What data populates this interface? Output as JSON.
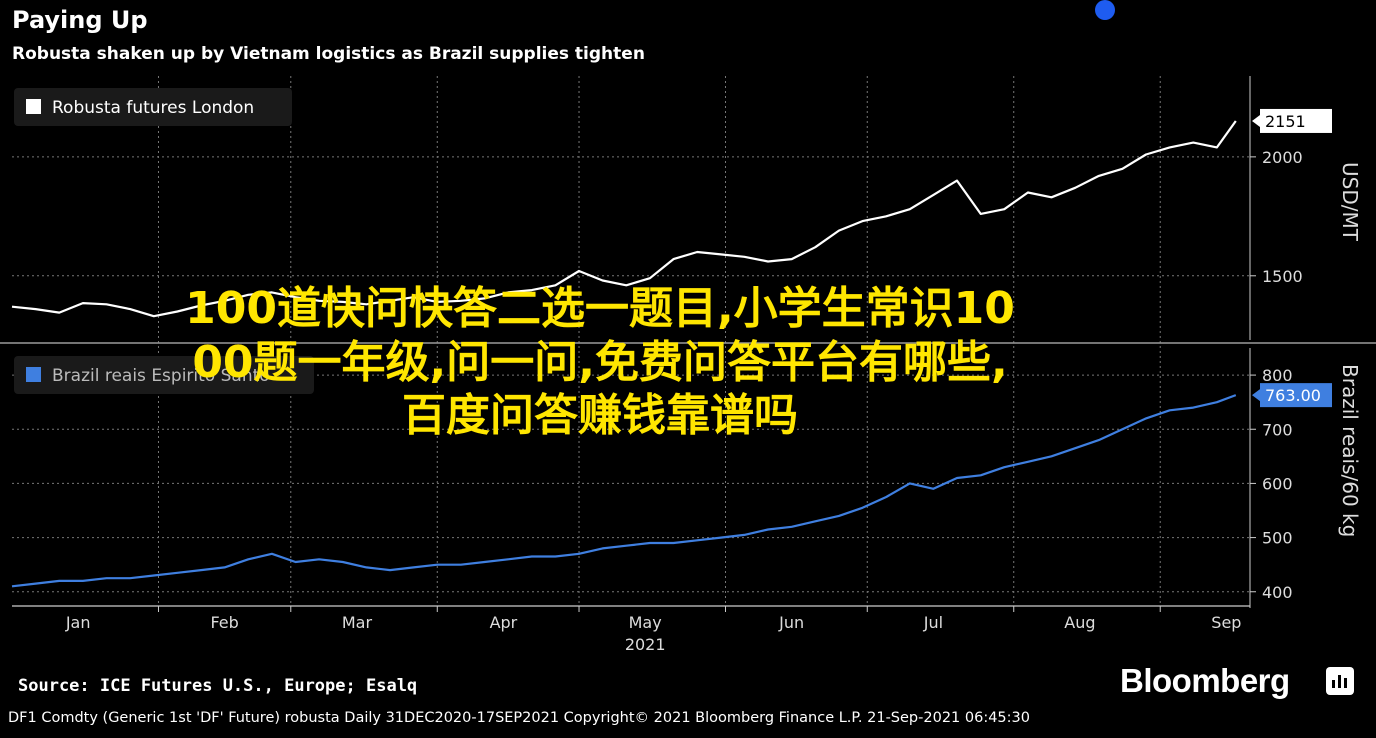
{
  "header": {
    "title": "Paying Up",
    "subtitle": "Robusta shaken up by Vietnam logistics as Brazil supplies tighten"
  },
  "overlay": {
    "lines": [
      "100道快问快答二选一题目,小学生常识10",
      "00题一年级,问一问,免费问答平台有哪些,",
      "百度问答赚钱靠谱吗"
    ]
  },
  "chart_data": [
    {
      "type": "line",
      "series": [
        {
          "name": "Robusta futures London",
          "color": "#ffffff",
          "x": [
            "2021-01-01",
            "2021-01-06",
            "2021-01-11",
            "2021-01-16",
            "2021-01-21",
            "2021-01-26",
            "2021-01-31",
            "2021-02-05",
            "2021-02-10",
            "2021-02-15",
            "2021-02-20",
            "2021-02-25",
            "2021-03-02",
            "2021-03-07",
            "2021-03-12",
            "2021-03-17",
            "2021-03-22",
            "2021-03-27",
            "2021-04-01",
            "2021-04-06",
            "2021-04-11",
            "2021-04-16",
            "2021-04-21",
            "2021-04-26",
            "2021-05-01",
            "2021-05-06",
            "2021-05-11",
            "2021-05-16",
            "2021-05-21",
            "2021-05-26",
            "2021-05-31",
            "2021-06-05",
            "2021-06-10",
            "2021-06-15",
            "2021-06-20",
            "2021-06-25",
            "2021-06-30",
            "2021-07-05",
            "2021-07-10",
            "2021-07-15",
            "2021-07-20",
            "2021-07-25",
            "2021-07-30",
            "2021-08-04",
            "2021-08-09",
            "2021-08-14",
            "2021-08-19",
            "2021-08-24",
            "2021-08-29",
            "2021-09-03",
            "2021-09-08",
            "2021-09-13",
            "2021-09-17"
          ],
          "values": [
            1370,
            1360,
            1345,
            1385,
            1380,
            1360,
            1330,
            1350,
            1375,
            1395,
            1420,
            1430,
            1410,
            1395,
            1390,
            1380,
            1395,
            1410,
            1390,
            1395,
            1405,
            1430,
            1440,
            1460,
            1520,
            1480,
            1460,
            1490,
            1570,
            1600,
            1590,
            1580,
            1560,
            1570,
            1620,
            1690,
            1730,
            1750,
            1780,
            1840,
            1900,
            1760,
            1780,
            1850,
            1830,
            1870,
            1920,
            1950,
            2010,
            2040,
            2060,
            2040,
            2151
          ]
        }
      ],
      "ylabel": "USD/MT",
      "yticks": [
        1500,
        2000
      ],
      "ylim": [
        1230,
        2340
      ],
      "last_value_label": "2151",
      "grid": true,
      "legend": "top-left"
    },
    {
      "type": "line",
      "series": [
        {
          "name": "Brazil reais Espirito Santo",
          "color": "#3f7fe0",
          "x": [
            "2021-01-01",
            "2021-01-06",
            "2021-01-11",
            "2021-01-16",
            "2021-01-21",
            "2021-01-26",
            "2021-01-31",
            "2021-02-05",
            "2021-02-10",
            "2021-02-15",
            "2021-02-20",
            "2021-02-25",
            "2021-03-02",
            "2021-03-07",
            "2021-03-12",
            "2021-03-17",
            "2021-03-22",
            "2021-03-27",
            "2021-04-01",
            "2021-04-06",
            "2021-04-11",
            "2021-04-16",
            "2021-04-21",
            "2021-04-26",
            "2021-05-01",
            "2021-05-06",
            "2021-05-11",
            "2021-05-16",
            "2021-05-21",
            "2021-05-26",
            "2021-05-31",
            "2021-06-05",
            "2021-06-10",
            "2021-06-15",
            "2021-06-20",
            "2021-06-25",
            "2021-06-30",
            "2021-07-05",
            "2021-07-10",
            "2021-07-15",
            "2021-07-20",
            "2021-07-25",
            "2021-07-30",
            "2021-08-04",
            "2021-08-09",
            "2021-08-14",
            "2021-08-19",
            "2021-08-24",
            "2021-08-29",
            "2021-09-03",
            "2021-09-08",
            "2021-09-13",
            "2021-09-17"
          ],
          "values": [
            410,
            415,
            420,
            420,
            425,
            425,
            430,
            435,
            440,
            445,
            460,
            470,
            455,
            460,
            455,
            445,
            440,
            445,
            450,
            450,
            455,
            460,
            465,
            465,
            470,
            480,
            485,
            490,
            490,
            495,
            500,
            505,
            515,
            520,
            530,
            540,
            555,
            575,
            600,
            590,
            610,
            615,
            630,
            640,
            650,
            665,
            680,
            700,
            720,
            735,
            740,
            750,
            763
          ]
        }
      ],
      "ylabel": "Brazil reais/60 kg",
      "yticks": [
        400,
        500,
        600,
        700,
        800
      ],
      "ylim": [
        370,
        850
      ],
      "last_value_label": "763.00",
      "grid": true
    }
  ],
  "xaxis": {
    "months": [
      "Jan",
      "Feb",
      "Mar",
      "Apr",
      "May",
      "Jun",
      "Jul",
      "Aug",
      "Sep"
    ],
    "year": "2021"
  },
  "footer": {
    "source": "Source: ICE Futures U.S., Europe; Esalq",
    "info": "DF1 Comdty (Generic 1st 'DF' Future) robusta  Daily 31DEC2020-17SEP2021  Copyright© 2021 Bloomberg Finance L.P.  21-Sep-2021 06:45:30",
    "brand": "Bloomberg"
  }
}
